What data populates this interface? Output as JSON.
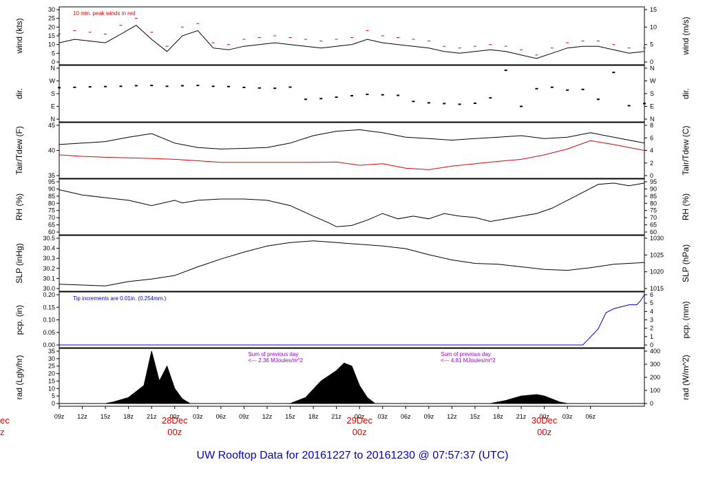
{
  "title": "UW Rooftop Data for 20161227  to  20161230 @ 07:57:37  (UTC)",
  "colors": {
    "primary_series": "#000000",
    "secondary_series": "#e00000",
    "peak_wind": "#e00000",
    "precip": "#0000cc",
    "annotation": "#9900cc",
    "title": "#0000cc"
  },
  "chart_data": [
    {
      "type": "line",
      "panel": "wind",
      "ylabel": "wind (kts)",
      "ylabel_right": "wind (m/s)",
      "ylim": [
        0,
        30
      ],
      "yticks": [
        "0",
        "5",
        "10",
        "15",
        "20",
        "25",
        "30"
      ],
      "yticks_right": [
        "0",
        "5",
        "10",
        "15"
      ],
      "annotation": "10 min. peak winds in red",
      "series": [
        {
          "name": "wind",
          "color": "#000000",
          "x": [
            0,
            2,
            4,
            6,
            8,
            10,
            12,
            14,
            16,
            18,
            20,
            22,
            24,
            26,
            28,
            30,
            32,
            34,
            36,
            38,
            40,
            42,
            44,
            46,
            48,
            50,
            52,
            54,
            56,
            58,
            60,
            62,
            64,
            66,
            68,
            70,
            72,
            74,
            76
          ],
          "values": [
            11,
            13,
            12,
            11,
            16,
            21,
            13,
            6,
            15,
            18,
            8,
            7,
            9,
            10,
            11,
            10,
            9,
            8,
            9,
            10,
            13,
            11,
            10,
            9,
            8,
            6,
            5,
            6,
            7,
            6,
            4,
            2,
            5,
            8,
            9,
            9,
            7,
            5,
            6
          ]
        },
        {
          "name": "10 min. peak winds",
          "color": "#e00000",
          "x": [
            0,
            2,
            4,
            6,
            8,
            10,
            12,
            14,
            16,
            18,
            20,
            22,
            24,
            26,
            28,
            30,
            32,
            34,
            36,
            38,
            40,
            42,
            44,
            46,
            48,
            50,
            52,
            54,
            56,
            58,
            60,
            62,
            64,
            66,
            68,
            70,
            72,
            74,
            76
          ],
          "values": [
            16,
            18,
            17,
            16,
            21,
            25,
            17,
            9,
            20,
            22,
            11,
            10,
            13,
            14,
            15,
            14,
            13,
            12,
            13,
            14,
            18,
            15,
            14,
            13,
            12,
            9,
            8,
            9,
            10,
            9,
            7,
            4,
            8,
            11,
            12,
            12,
            10,
            8,
            8
          ]
        }
      ]
    },
    {
      "type": "scatter",
      "panel": "dir",
      "ylabel": "dir.",
      "ylabel_right": "dir.",
      "ylim": [
        0,
        360
      ],
      "yticks": [
        "N",
        "E",
        "S",
        "W",
        "N"
      ],
      "yticks_right": [
        "N",
        "E",
        "S",
        "W",
        "N"
      ],
      "series": [
        {
          "name": "direction",
          "color": "#000000",
          "x": [
            0,
            2,
            4,
            6,
            8,
            10,
            12,
            14,
            16,
            18,
            20,
            22,
            24,
            26,
            28,
            30,
            32,
            34,
            36,
            38,
            40,
            42,
            44,
            46,
            48,
            50,
            52,
            54,
            56,
            58,
            60,
            62,
            64,
            66,
            68,
            70,
            72,
            74,
            76
          ],
          "values": [
            222,
            225,
            228,
            230,
            232,
            236,
            238,
            232,
            236,
            238,
            232,
            230,
            224,
            220,
            218,
            226,
            140,
            145,
            155,
            165,
            175,
            172,
            168,
            125,
            115,
            110,
            105,
            112,
            150,
            345,
            90,
            215,
            225,
            205,
            210,
            140,
            330,
            95,
            110
          ]
        }
      ]
    },
    {
      "type": "line",
      "panel": "temp",
      "ylabel": "Tair/Tdew (F)",
      "ylabel_right": "Tair/Tdew (C)",
      "ylim": [
        31,
        48
      ],
      "yticks": [
        "35",
        "40",
        "45"
      ],
      "yticks_right": [
        "0",
        "2",
        "4",
        "6",
        "8"
      ],
      "series": [
        {
          "name": "Tair",
          "color": "#000000",
          "x": [
            0,
            3,
            6,
            9,
            12,
            15,
            18,
            21,
            24,
            27,
            30,
            33,
            36,
            39,
            42,
            45,
            48,
            51,
            54,
            57,
            60,
            63,
            66,
            69,
            72,
            76
          ],
          "values": [
            41.5,
            42,
            42.5,
            44,
            45.2,
            42,
            40.5,
            40,
            40.2,
            40.5,
            42,
            44.5,
            46,
            46.5,
            45.5,
            44,
            43.5,
            43,
            43.5,
            44,
            44.5,
            43.5,
            44,
            45.5,
            44,
            42
          ]
        },
        {
          "name": "Tdew",
          "color": "#e00000",
          "x": [
            0,
            3,
            6,
            9,
            12,
            15,
            18,
            21,
            24,
            27,
            30,
            33,
            36,
            39,
            42,
            45,
            48,
            51,
            54,
            57,
            60,
            63,
            66,
            69,
            72,
            76
          ],
          "values": [
            38,
            37.5,
            37.2,
            37,
            36.8,
            36.5,
            36,
            35.5,
            35.5,
            35.5,
            35.5,
            35.5,
            35.6,
            34.5,
            35,
            33.5,
            33,
            34.2,
            35,
            35.8,
            36.5,
            38,
            40,
            42.8,
            41.5,
            39.5
          ]
        }
      ]
    },
    {
      "type": "line",
      "panel": "rh",
      "ylabel": "RH (%)",
      "ylabel_right": "RH (%)",
      "ylim": [
        58,
        96
      ],
      "yticks": [
        "60",
        "65",
        "70",
        "75",
        "80",
        "85",
        "90",
        "95"
      ],
      "yticks_right": [
        "60",
        "65",
        "70",
        "75",
        "80",
        "85",
        "90",
        "95"
      ],
      "series": [
        {
          "name": "RH",
          "color": "#000000",
          "x": [
            0,
            3,
            6,
            9,
            12,
            15,
            16,
            18,
            21,
            24,
            27,
            30,
            33,
            35,
            36,
            38,
            40,
            42,
            44,
            46,
            48,
            50,
            52,
            54,
            56,
            58,
            60,
            62,
            64,
            66,
            68,
            70,
            72,
            74,
            76
          ],
          "values": [
            90,
            86,
            84,
            82,
            78,
            82,
            80,
            82,
            83,
            83,
            82,
            78,
            70,
            65,
            62,
            63,
            67,
            72,
            68,
            70,
            68,
            72,
            70,
            69,
            66,
            68,
            70,
            72,
            76,
            82,
            88,
            94,
            95,
            93,
            95
          ]
        }
      ]
    },
    {
      "type": "line",
      "panel": "slp",
      "ylabel": "SLP (inHg)",
      "ylabel_right": "SLP (hPa)",
      "ylim": [
        29.95,
        30.53
      ],
      "yticks": [
        "30.0",
        "30.1",
        "30.2",
        "30.3",
        "30.4",
        "30.5"
      ],
      "yticks_right": [
        "1015",
        "1020",
        "1025",
        "1030"
      ],
      "series": [
        {
          "name": "SLP",
          "color": "#000000",
          "x": [
            0,
            3,
            6,
            9,
            12,
            15,
            18,
            21,
            24,
            27,
            30,
            33,
            36,
            39,
            42,
            45,
            48,
            51,
            54,
            57,
            60,
            63,
            66,
            69,
            72,
            76
          ],
          "values": [
            30.0,
            29.99,
            29.98,
            30.03,
            30.06,
            30.1,
            30.2,
            30.29,
            30.37,
            30.44,
            30.48,
            30.5,
            30.48,
            30.46,
            30.44,
            30.41,
            30.34,
            30.28,
            30.24,
            30.23,
            30.2,
            30.17,
            30.16,
            30.19,
            30.23,
            30.25
          ]
        }
      ]
    },
    {
      "type": "line",
      "panel": "pcp",
      "ylabel": "pcp. (in)",
      "ylabel_right": "pcp. (mm)",
      "ylim": [
        0,
        0.25
      ],
      "yticks": [
        "0.00",
        "0.05",
        "0.10",
        "0.15",
        "0.20"
      ],
      "yticks_right": [
        "0",
        "1",
        "2",
        "3",
        "4",
        "5",
        "6"
      ],
      "annotation": "Tip increments are 0.01in. (0.254mm.)",
      "series": [
        {
          "name": "accumulated precipitation",
          "color": "#0000cc",
          "x": [
            0,
            68,
            68.5,
            69,
            69.5,
            70,
            70.5,
            71,
            72,
            73,
            74,
            75,
            75.5,
            76
          ],
          "values": [
            0,
            0,
            0.02,
            0.04,
            0.06,
            0.08,
            0.12,
            0.16,
            0.18,
            0.19,
            0.2,
            0.2,
            0.22,
            0.25
          ]
        }
      ]
    },
    {
      "type": "area",
      "panel": "rad",
      "ylabel": "rad (Lgly/hr)",
      "ylabel_right": "rad (W/m^2)",
      "ylim": [
        0,
        35
      ],
      "yticks": [
        "0",
        "5",
        "10",
        "15",
        "20",
        "25",
        "30",
        "35"
      ],
      "yticks_right": [
        "0",
        "100",
        "200",
        "300",
        "400"
      ],
      "annotations": [
        {
          "text": "Sum of previous day",
          "x": 24
        },
        {
          "text": "<--- 2.36 MJoules/m^2",
          "x": 24
        },
        {
          "text": "Sum of previous day",
          "x": 49
        },
        {
          "text": "<--- 4.81 MJoules/m^2",
          "x": 49
        }
      ],
      "series": [
        {
          "name": "radiation",
          "color": "#000000",
          "x": [
            0,
            6,
            7,
            9,
            11,
            12,
            13,
            14,
            15,
            16,
            17,
            30,
            32,
            34,
            36,
            37,
            38,
            39,
            40,
            41,
            42,
            56,
            58,
            60,
            62,
            63,
            64,
            65,
            66,
            76
          ],
          "values": [
            0,
            0,
            1,
            4,
            12,
            35,
            15,
            25,
            10,
            3,
            0,
            0,
            4,
            15,
            22,
            27,
            25,
            12,
            4,
            0,
            0,
            0,
            2,
            5,
            6,
            5,
            3,
            1,
            0,
            0
          ]
        }
      ]
    }
  ],
  "x_axis": {
    "range_hours": [
      0,
      76
    ],
    "ticks": [
      {
        "h": 0,
        "label": "09z"
      },
      {
        "h": 3,
        "label": "12z"
      },
      {
        "h": 6,
        "label": "15z"
      },
      {
        "h": 9,
        "label": "18z"
      },
      {
        "h": 12,
        "label": "21z"
      },
      {
        "h": 15,
        "label": "00z"
      },
      {
        "h": 18,
        "label": "03z"
      },
      {
        "h": 21,
        "label": "06z"
      },
      {
        "h": 24,
        "label": "09z"
      },
      {
        "h": 27,
        "label": "12z"
      },
      {
        "h": 30,
        "label": "15z"
      },
      {
        "h": 33,
        "label": "18z"
      },
      {
        "h": 36,
        "label": "21z"
      },
      {
        "h": 39,
        "label": "00z"
      },
      {
        "h": 42,
        "label": "03z"
      },
      {
        "h": 45,
        "label": "06z"
      },
      {
        "h": 48,
        "label": "09z"
      },
      {
        "h": 51,
        "label": "12z"
      },
      {
        "h": 54,
        "label": "15z"
      },
      {
        "h": 57,
        "label": "18z"
      },
      {
        "h": 60,
        "label": "21z"
      },
      {
        "h": 63,
        "label": "00z"
      },
      {
        "h": 66,
        "label": "03z"
      },
      {
        "h": 69,
        "label": "06z"
      }
    ],
    "date_labels": [
      {
        "h": 15,
        "label": "28Dec"
      },
      {
        "h": 39,
        "label": "29Dec"
      },
      {
        "h": 63,
        "label": "30Dec"
      }
    ],
    "date_sublabel": "00z",
    "left_cut_labels": [
      "ec",
      "z"
    ]
  }
}
